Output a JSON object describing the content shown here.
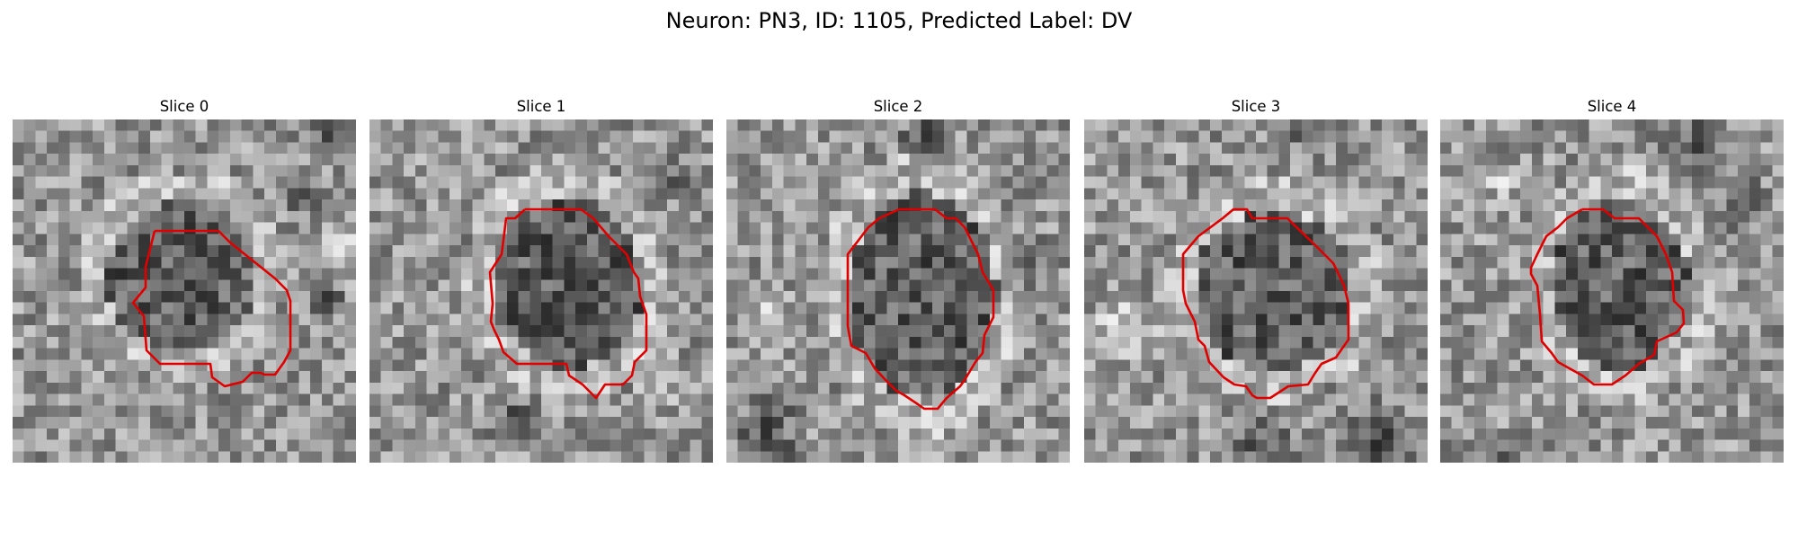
{
  "figure": {
    "title": "Neuron: PN3, ID: 1105, Predicted Label: DV"
  },
  "panels": [
    {
      "title": "Slice 0"
    },
    {
      "title": "Slice 1"
    },
    {
      "title": "Slice 2"
    },
    {
      "title": "Slice 3"
    },
    {
      "title": "Slice 4"
    }
  ],
  "style": {
    "contour_color": "#e00000",
    "colormap": "grayscale"
  }
}
